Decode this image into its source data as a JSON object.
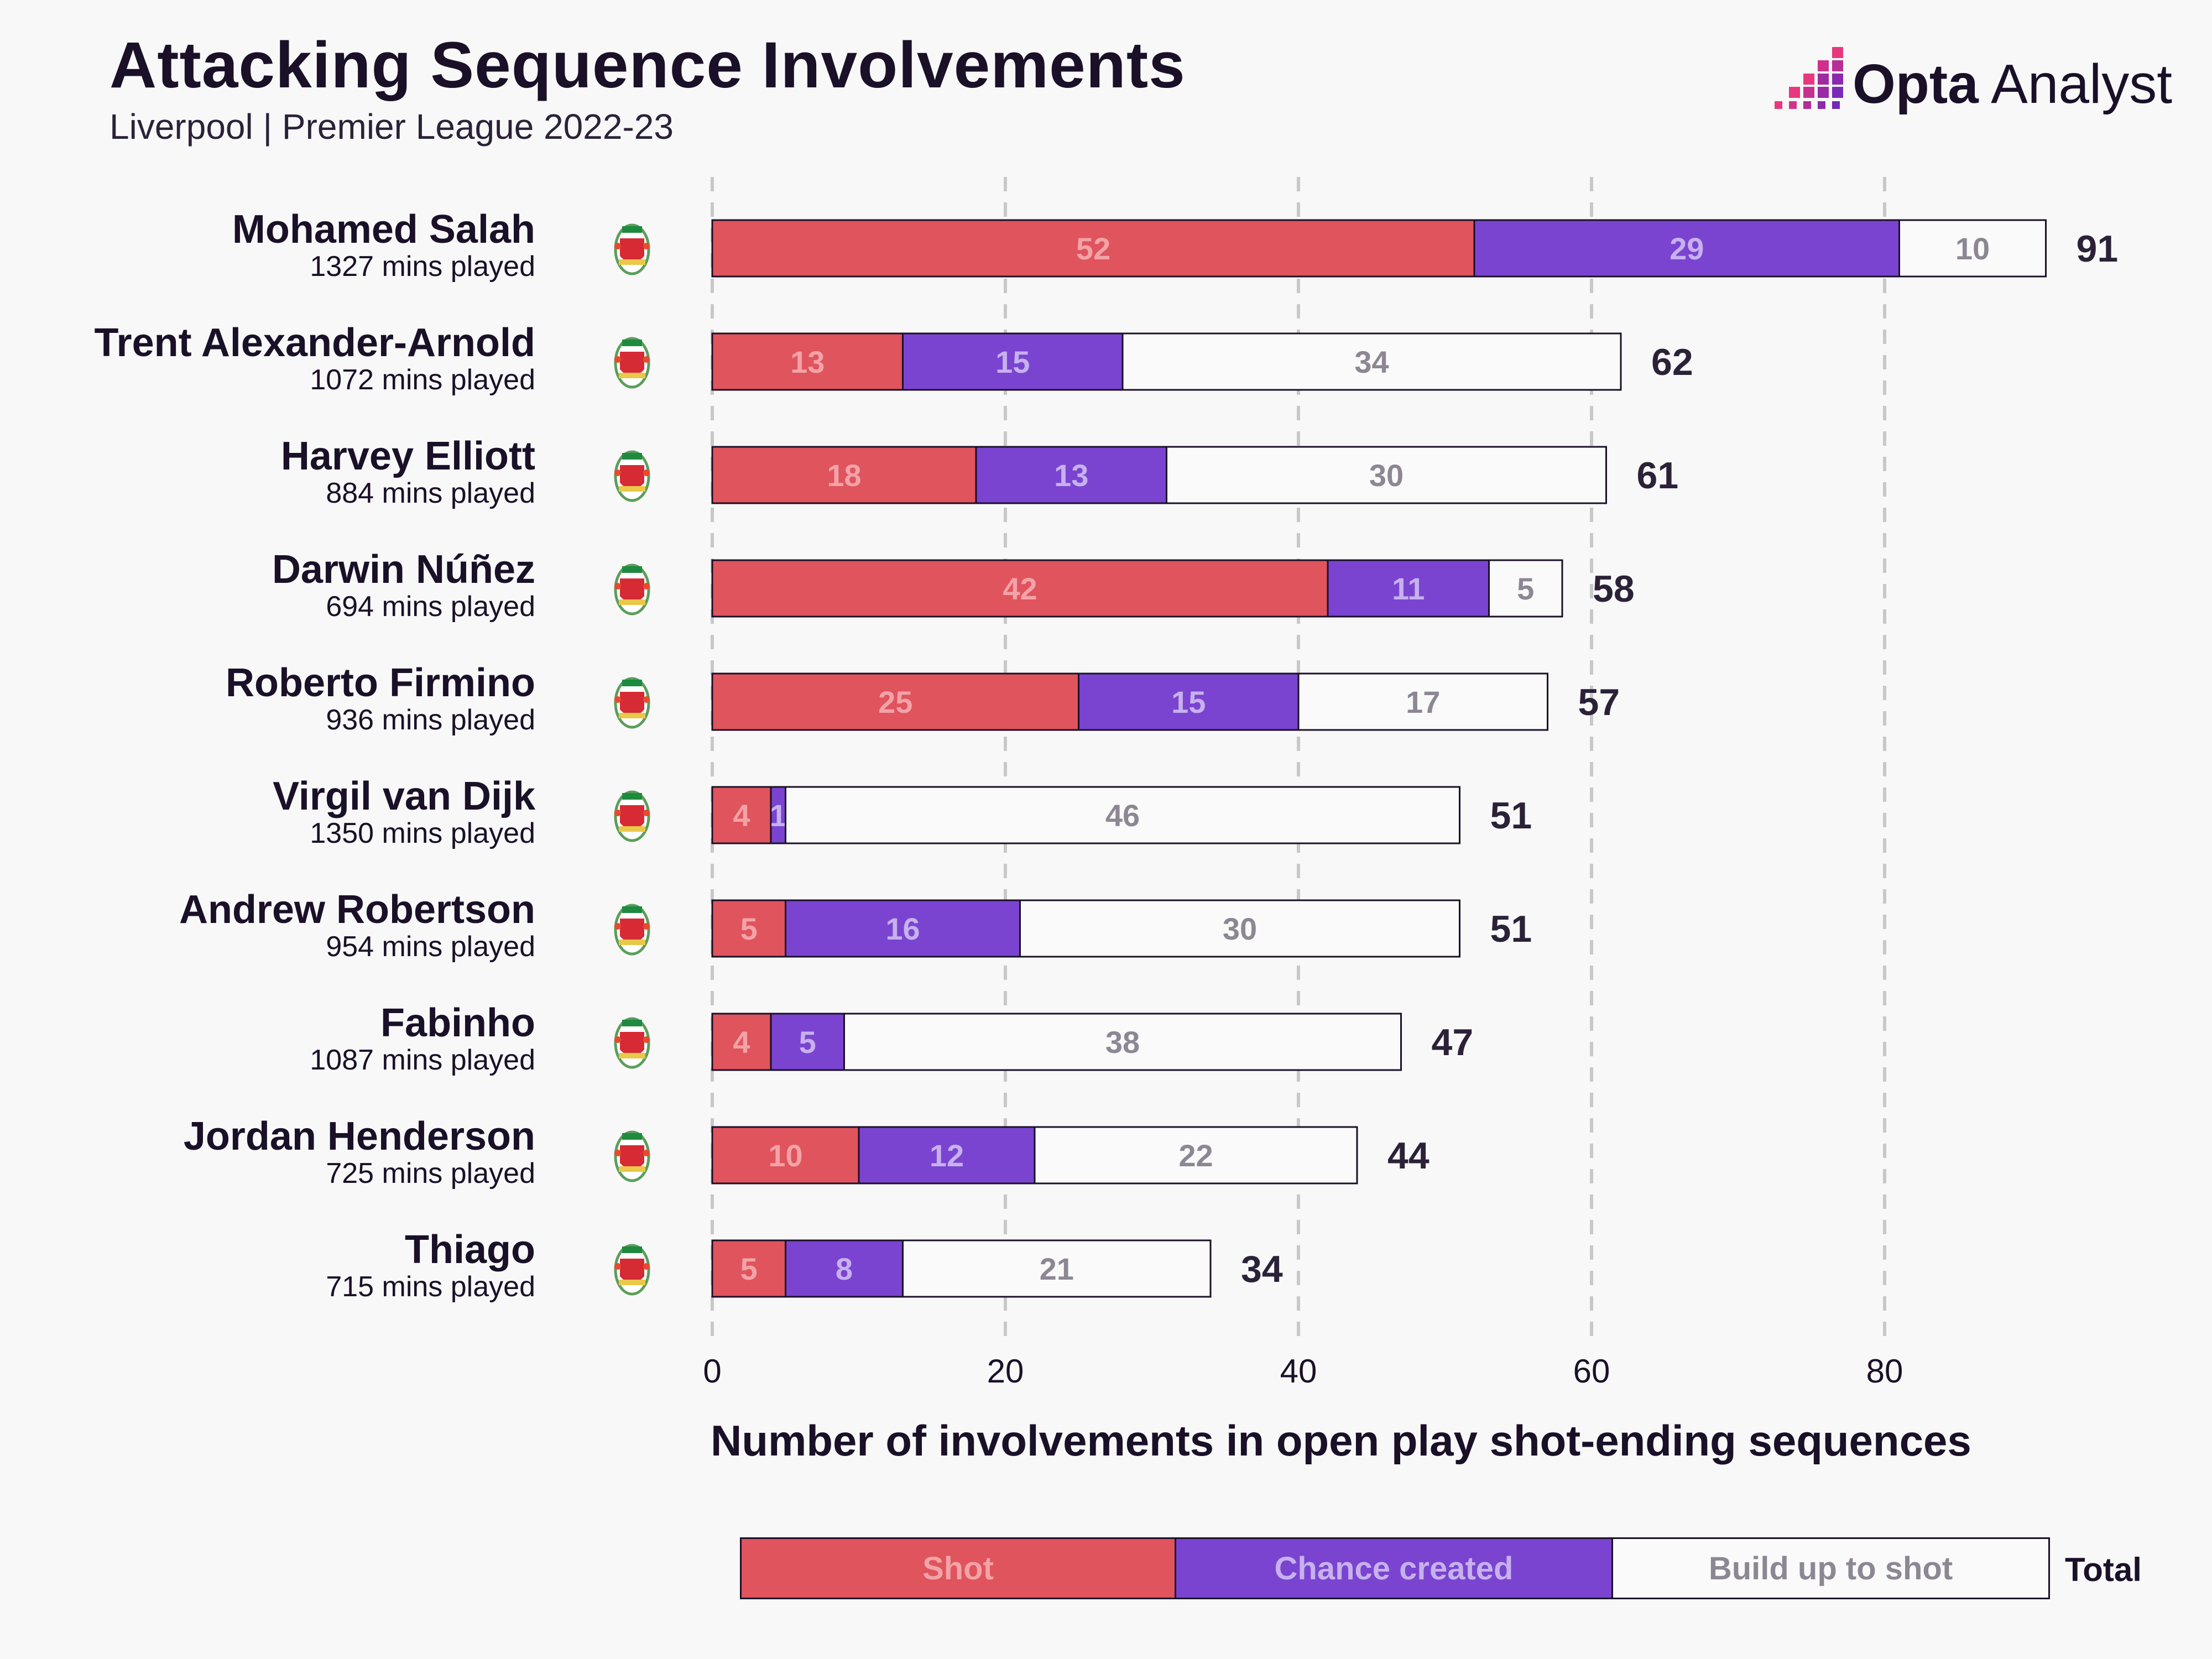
{
  "title": "Attacking Sequence Involvements",
  "subtitle": "Liverpool | Premier League 2022-23",
  "brand": {
    "name_bold": "Opta",
    "name_light": "Analyst"
  },
  "colors": {
    "shot": "#e0545d",
    "chance": "#7a44d0",
    "buildup": "#fafafa",
    "outline": "#1a1028",
    "shot_text": "#f3a3a8",
    "chance_text": "#c6b1ee",
    "buildup_text": "#8d8794",
    "grid": "#c8c8c8"
  },
  "chart_data": {
    "type": "bar",
    "orientation": "horizontal",
    "stacked": true,
    "title": "Attacking Sequence Involvements",
    "subtitle": "Liverpool | Premier League 2022-23",
    "xlabel": "Number of involvements in open play shot-ending sequences",
    "ylabel": "",
    "xlim": [
      0,
      91
    ],
    "xticks": [
      0,
      20,
      40,
      60,
      80
    ],
    "grid": "vertical dashed",
    "categories": [
      "Mohamed Salah",
      "Trent Alexander-Arnold",
      "Harvey Elliott",
      "Darwin Núñez",
      "Roberto Firmino",
      "Virgil van Dijk",
      "Andrew Robertson",
      "Fabinho",
      "Jordan Henderson",
      "Thiago"
    ],
    "minutes": [
      "1327 mins played",
      "1072 mins played",
      "884 mins played",
      "694 mins played",
      "936 mins played",
      "1350 mins played",
      "954 mins played",
      "1087 mins played",
      "725 mins played",
      "715 mins played"
    ],
    "series": [
      {
        "name": "Shot",
        "values": [
          52,
          13,
          18,
          42,
          25,
          4,
          5,
          4,
          10,
          5
        ]
      },
      {
        "name": "Chance created",
        "values": [
          29,
          15,
          13,
          11,
          15,
          1,
          16,
          5,
          12,
          8
        ]
      },
      {
        "name": "Build up to shot",
        "values": [
          10,
          34,
          30,
          5,
          17,
          46,
          30,
          38,
          22,
          21
        ]
      }
    ],
    "totals": [
      91,
      62,
      61,
      58,
      57,
      51,
      51,
      47,
      44,
      34
    ]
  },
  "legend": {
    "items": [
      "Shot",
      "Chance created",
      "Build up to shot"
    ],
    "total_label": "Total"
  }
}
